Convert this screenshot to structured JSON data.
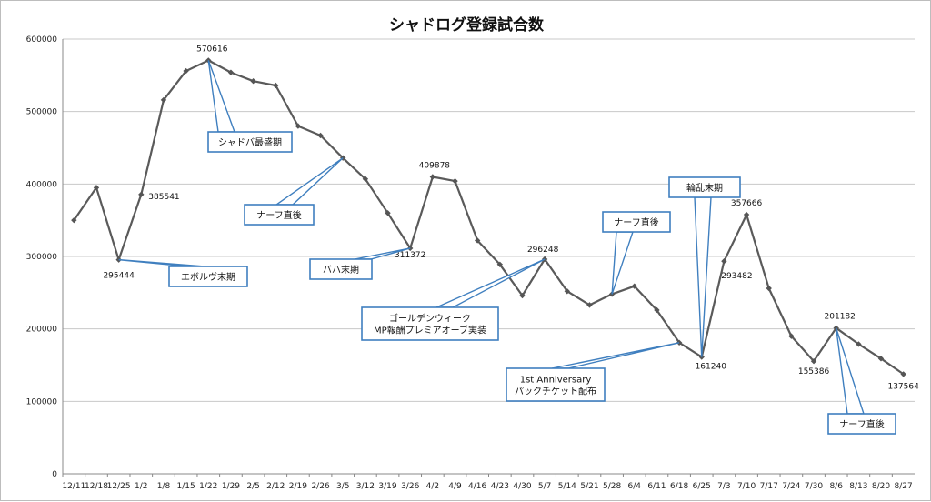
{
  "chart_data": {
    "type": "line",
    "title": "シャドログ登録試合数",
    "xlabel": "",
    "ylabel": "",
    "ylim": [
      0,
      600000
    ],
    "yticks": [
      "0",
      "100000",
      "200000",
      "300000",
      "400000",
      "500000",
      "600000"
    ],
    "grid": true,
    "legend": "none",
    "categories": [
      "12/11",
      "12/18",
      "12/25",
      "1/2",
      "1/8",
      "1/15",
      "1/22",
      "1/29",
      "2/5",
      "2/12",
      "2/19",
      "2/26",
      "3/5",
      "3/12",
      "3/19",
      "3/26",
      "4/2",
      "4/9",
      "4/16",
      "4/23",
      "4/30",
      "5/7",
      "5/14",
      "5/21",
      "5/28",
      "6/4",
      "6/11",
      "6/18",
      "6/25",
      "7/3",
      "7/10",
      "7/17",
      "7/24",
      "7/30",
      "8/6",
      "8/13",
      "8/20",
      "8/27"
    ],
    "series": [
      {
        "values": [
          350000,
          395000,
          295444,
          385541,
          516000,
          556000,
          570616,
          554000,
          542000,
          536000,
          480000,
          467000,
          436000,
          407000,
          360000,
          311372,
          409878,
          404000,
          322000,
          289000,
          246000,
          296248,
          252000,
          233000,
          248000,
          259000,
          226000,
          181000,
          161240,
          293482,
          357666,
          256000,
          190000,
          155386,
          201182,
          179000,
          159000,
          137564
        ]
      }
    ],
    "data_labels": [
      {
        "index": 2,
        "text": "295444"
      },
      {
        "index": 3,
        "text": "385541"
      },
      {
        "index": 6,
        "text": "570616"
      },
      {
        "index": 15,
        "text": "311372"
      },
      {
        "index": 16,
        "text": "409878"
      },
      {
        "index": 21,
        "text": "296248"
      },
      {
        "index": 28,
        "text": "161240"
      },
      {
        "index": 29,
        "text": "293482"
      },
      {
        "index": 30,
        "text": "357666"
      },
      {
        "index": 33,
        "text": "155386"
      },
      {
        "index": 34,
        "text": "201182"
      },
      {
        "index": 37,
        "text": "137564"
      }
    ],
    "annotations": [
      {
        "lines": [
          "エボルヴ末期"
        ],
        "target_index": 2
      },
      {
        "lines": [
          "シャドバ最盛期"
        ],
        "target_index": 6
      },
      {
        "lines": [
          "ナーフ直後"
        ],
        "target_index": 12
      },
      {
        "lines": [
          "バハ末期"
        ],
        "target_index": 15
      },
      {
        "lines": [
          "ゴールデンウィーク",
          "MP報酬プレミアオーブ実装"
        ],
        "target_index": 21
      },
      {
        "lines": [
          "ナーフ直後"
        ],
        "target_index": 24
      },
      {
        "lines": [
          "1st Anniversary",
          "パックチケット配布"
        ],
        "target_index": 27
      },
      {
        "lines": [
          "輪乱末期"
        ],
        "target_index": 28
      },
      {
        "lines": [
          "ナーフ直後"
        ],
        "target_index": 34
      }
    ],
    "colors": {
      "line": "#5a5a5a",
      "callout_border": "#3f7fbf",
      "grid": "#c8c8c8"
    }
  }
}
